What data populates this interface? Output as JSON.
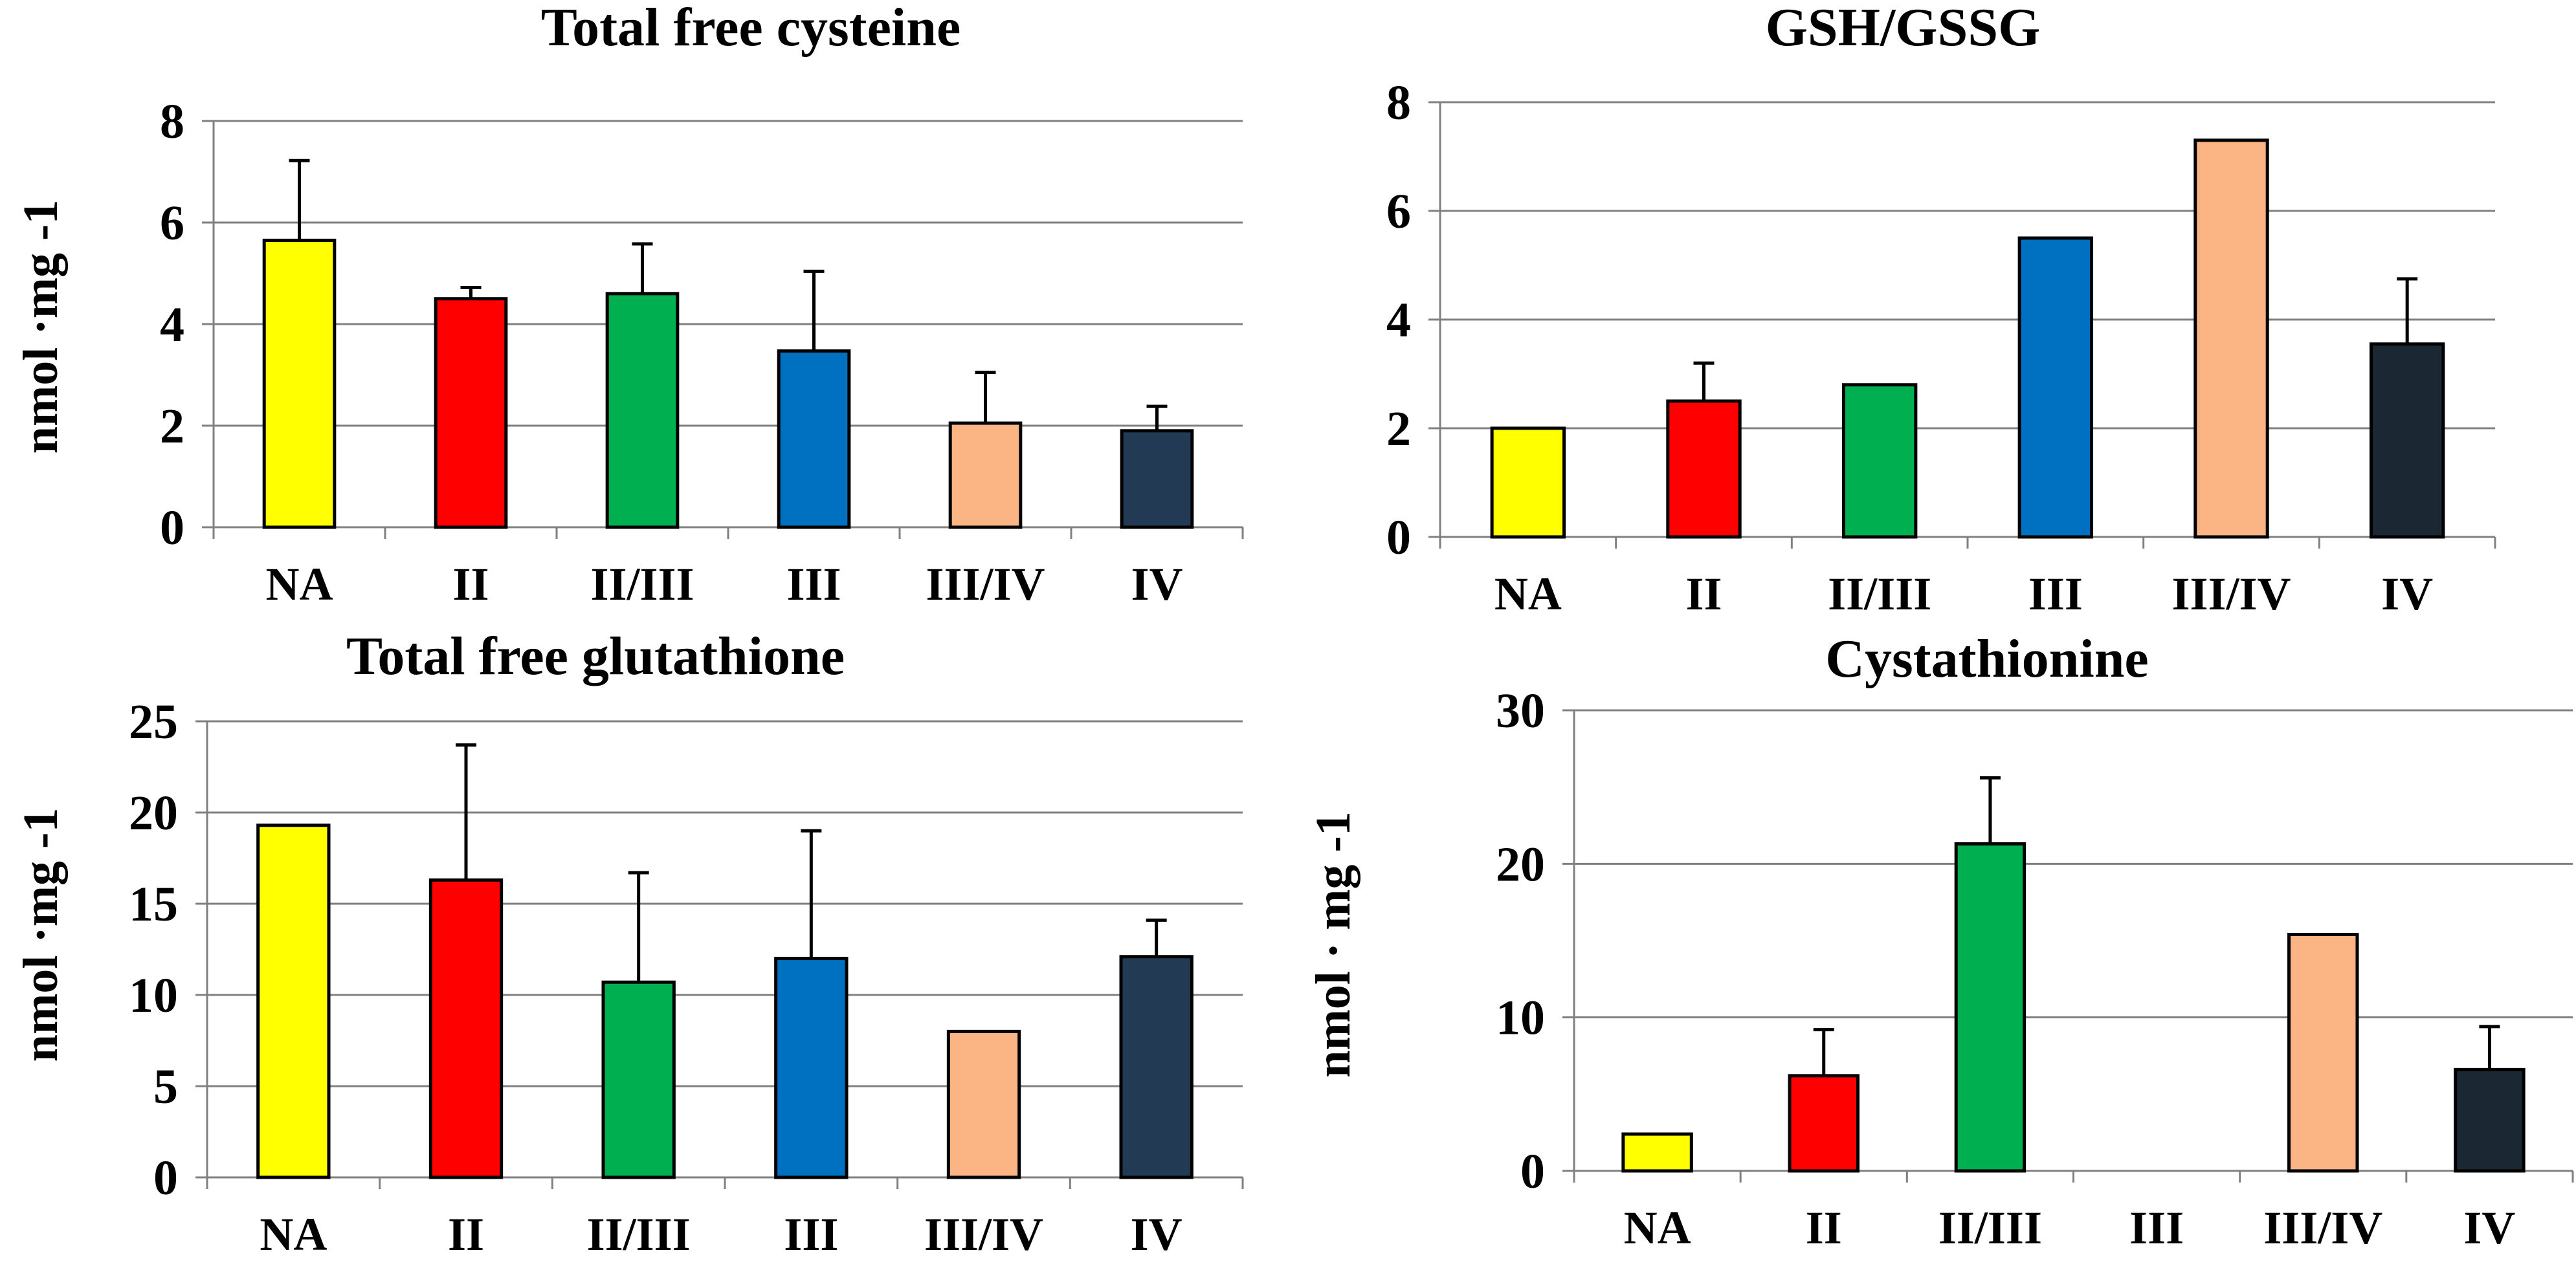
{
  "chart_data": [
    {
      "type": "bar",
      "title": "Total free cysteine",
      "ylabel": "nmol ·mg -1",
      "xlabel": "",
      "categories": [
        "NA",
        "II",
        "II/III",
        "III",
        "III/IV",
        "IV"
      ],
      "values": [
        5.65,
        4.5,
        4.6,
        3.47,
        2.05,
        1.9
      ],
      "error_upper": [
        1.57,
        0.22,
        0.98,
        1.57,
        1.0,
        0.48
      ],
      "colors": [
        "#ffff00",
        "#ff0000",
        "#00b050",
        "#0070c0",
        "#fbb584",
        "#233a54"
      ],
      "ylim": [
        0,
        8
      ],
      "yticks": [
        0,
        2,
        4,
        6,
        8
      ],
      "ytick_labels": [
        "0",
        "2",
        "4",
        "6",
        "8"
      ],
      "grid": true
    },
    {
      "type": "bar",
      "title": "GSH/GSSG",
      "ylabel": "",
      "xlabel": "",
      "categories": [
        "NA",
        "II",
        "II/III",
        "III",
        "III/IV",
        "IV"
      ],
      "values": [
        2.0,
        2.5,
        2.8,
        5.5,
        7.3,
        3.55
      ],
      "error_upper": [
        0,
        0.7,
        0,
        0,
        0,
        1.2
      ],
      "colors": [
        "#ffff00",
        "#ff0000",
        "#00b050",
        "#0070c0",
        "#fbb584",
        "#1b2733"
      ],
      "ylim": [
        0,
        8
      ],
      "yticks": [
        0,
        2,
        4,
        6,
        8
      ],
      "ytick_labels": [
        "0",
        "2",
        "4",
        "6",
        "8"
      ],
      "grid": true
    },
    {
      "type": "bar",
      "title": "Total free glutathione",
      "ylabel": "nmol ·mg -1",
      "xlabel": "",
      "categories": [
        "NA",
        "II",
        "II/III",
        "III",
        "III/IV",
        "IV"
      ],
      "values": [
        19.3,
        16.3,
        10.7,
        12.0,
        8.0,
        12.1
      ],
      "error_upper": [
        0,
        7.4,
        6.0,
        7.0,
        0,
        2.0
      ],
      "colors": [
        "#ffff00",
        "#ff0000",
        "#00b050",
        "#0070c0",
        "#fbb584",
        "#233a54"
      ],
      "ylim": [
        0,
        25
      ],
      "yticks": [
        0,
        5,
        10,
        15,
        20,
        25
      ],
      "ytick_labels": [
        "0",
        "5",
        "10",
        "15",
        "20",
        "25"
      ],
      "grid": true
    },
    {
      "type": "bar",
      "title": "Cystathionine",
      "ylabel": "nmol · mg -1",
      "xlabel": "",
      "categories": [
        "NA",
        "II",
        "II/III",
        "III",
        "III/IV",
        "IV"
      ],
      "values": [
        2.4,
        6.2,
        21.3,
        0,
        15.4,
        6.6
      ],
      "error_upper": [
        0,
        3.0,
        4.3,
        0,
        0,
        2.8
      ],
      "colors": [
        "#ffff00",
        "#ff0000",
        "#00b050",
        "#0070c0",
        "#fbb584",
        "#1b2733"
      ],
      "ylim": [
        0,
        30
      ],
      "yticks": [
        0,
        10,
        20,
        30
      ],
      "ytick_labels": [
        "0",
        "10",
        "20",
        "30"
      ],
      "grid": true
    }
  ]
}
